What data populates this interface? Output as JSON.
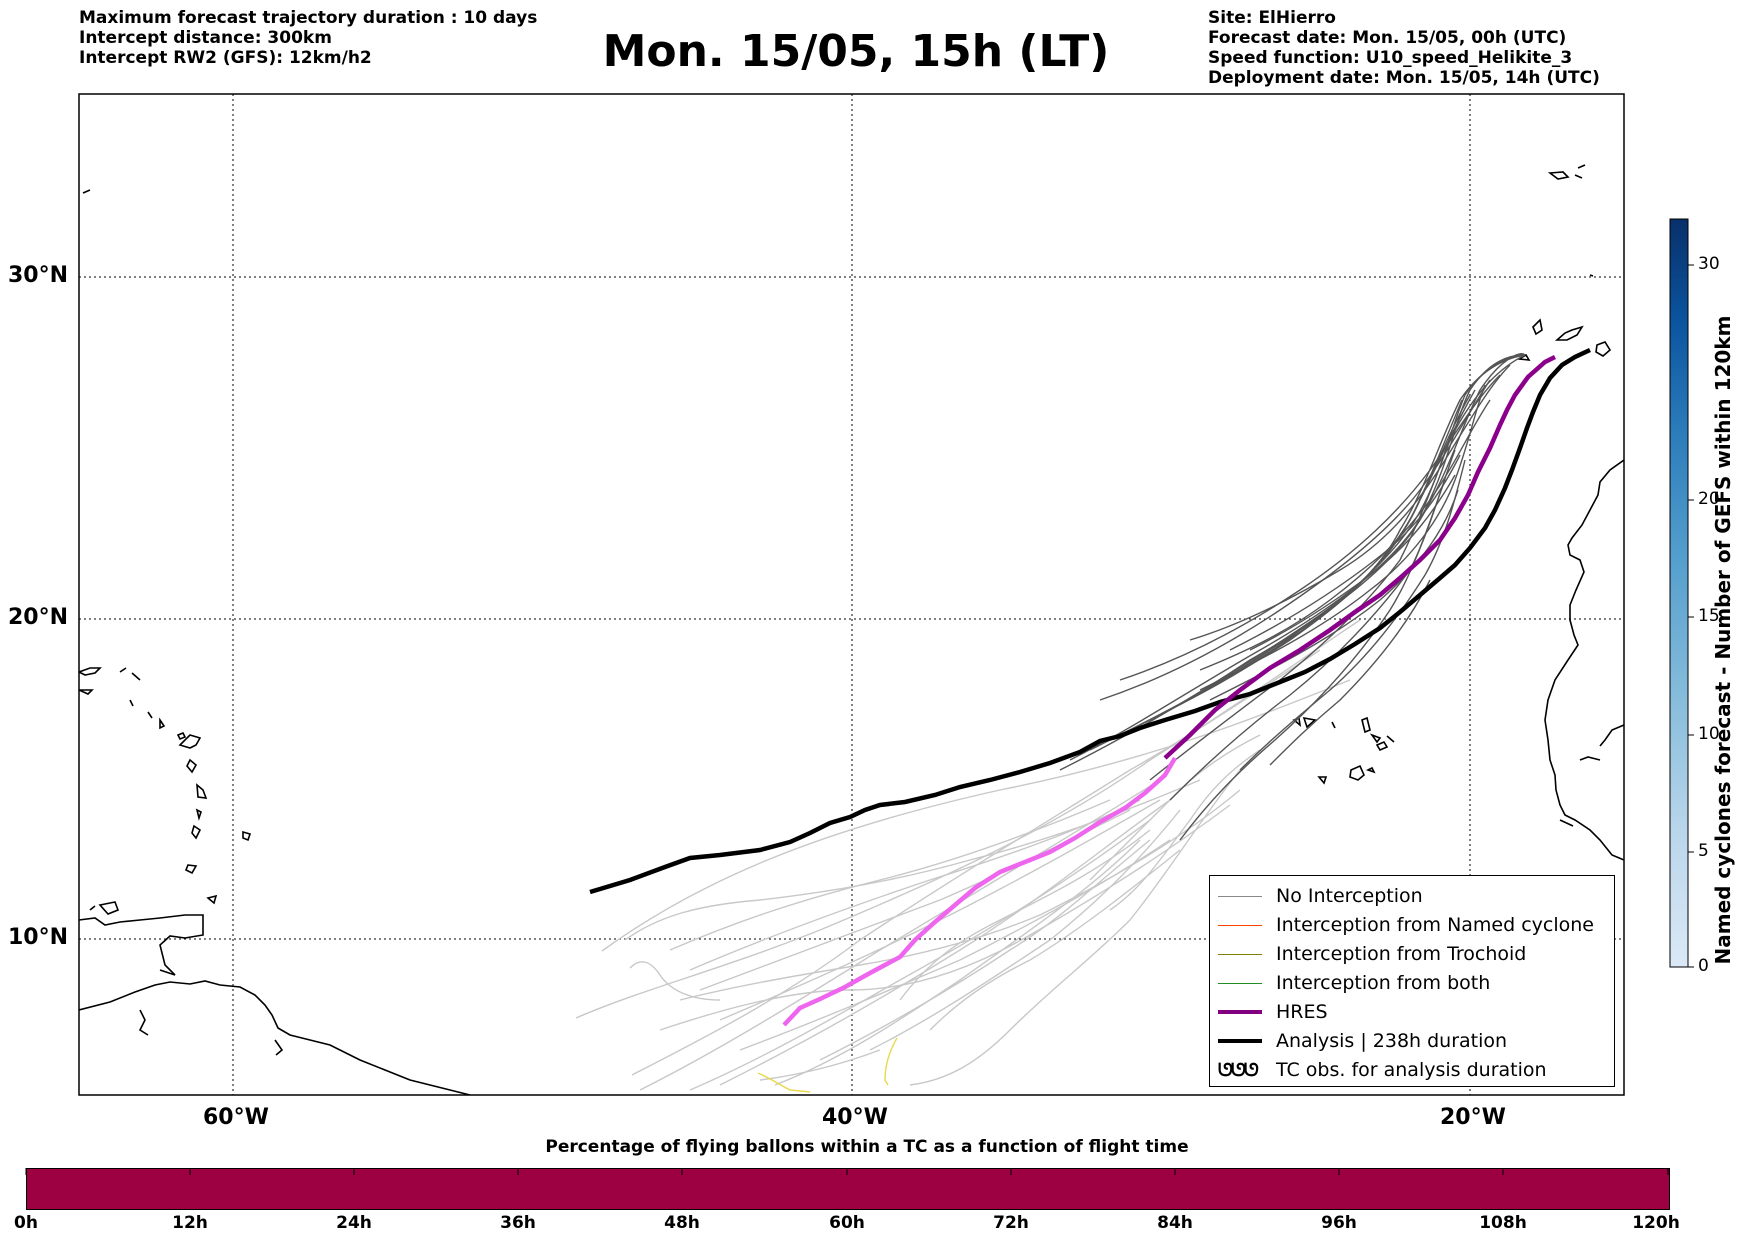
{
  "header_left": {
    "line1": "Maximum forecast trajectory duration : 10 days",
    "line2": "Intercept distance: 300km",
    "line3": "Intercept RW2 (GFS):  12km/h2"
  },
  "title": "Mon. 15/05, 15h (LT)",
  "header_right": {
    "line1": "Site: ElHierro",
    "line2": "Forecast date: Mon. 15/05, 00h (UTC)",
    "line3": "Speed function: U10_speed_Helikite_3",
    "line4": "Deployment date: Mon. 15/05, 14h (UTC)"
  },
  "map": {
    "lon_range": [
      -65,
      15
    ],
    "lat_range": [
      5.4,
      35.3
    ],
    "lat_ticks": [
      "30°N",
      "20°N",
      "10°N"
    ],
    "lon_ticks": [
      "60°W",
      "40°W",
      "20°W"
    ],
    "colors": {
      "analysis": "#000000",
      "hres": "#ee66ee",
      "hres_legend": "#800080",
      "no_interception": "#888888",
      "ensemble_light": "#c8c8c8",
      "ensemble_dark": "#555555",
      "named_cyclone": "#ff4500",
      "trochoid": "#808000",
      "both": "#228b22",
      "yellow_track": "#e8d84a"
    }
  },
  "legend": {
    "items": [
      {
        "label": "No Interception",
        "color": "#888888",
        "width": 1.5
      },
      {
        "label": "Interception from Named cyclone",
        "color": "#ff4500",
        "width": 1.5
      },
      {
        "label": "Interception from Trochoid",
        "color": "#808000",
        "width": 1.5
      },
      {
        "label": "Interception from both",
        "color": "#228b22",
        "width": 1.5
      },
      {
        "label": "HRES",
        "color": "#800080",
        "width": 4
      },
      {
        "label": "Analysis | 238h duration",
        "color": "#000000",
        "width": 4
      },
      {
        "label": "TC obs. for analysis duration",
        "symbol": "ᘎᘎᘎ"
      }
    ]
  },
  "colorbar": {
    "label": "Named cyclones forecast - Number of GEFS within 120km",
    "ticks": [
      "0",
      "5",
      "10",
      "15",
      "20",
      "30"
    ],
    "colors": [
      "#dbe9f6",
      "#bad6eb",
      "#89bedc",
      "#539ecd",
      "#2b7bba",
      "#0b559f",
      "#08306b"
    ]
  },
  "percentage_bar": {
    "title": "Percentage of flying ballons within a TC as a function of flight time",
    "color": "#9e0142",
    "ticks": [
      "0h",
      "12h",
      "24h",
      "36h",
      "48h",
      "60h",
      "72h",
      "84h",
      "96h",
      "108h",
      "120h"
    ]
  }
}
